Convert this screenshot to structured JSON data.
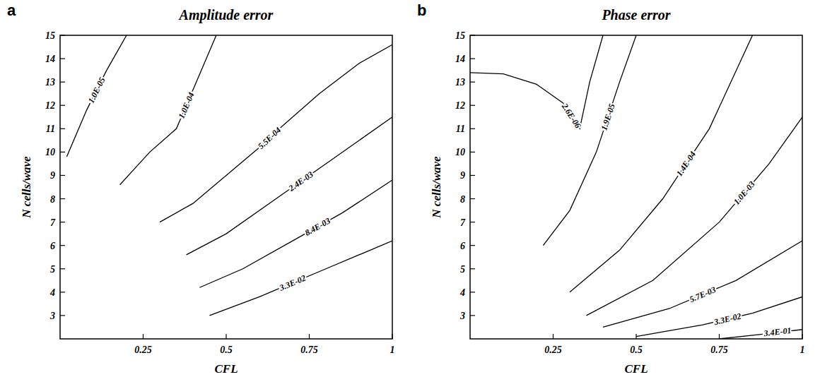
{
  "chart_data": [
    {
      "type": "contour",
      "panel": "a",
      "title": "Amplitude error",
      "x_label": "CFL",
      "y_label": "N cells/wave",
      "color": "#000000",
      "grid": false,
      "xlim": [
        0,
        1
      ],
      "ylim": [
        2,
        15
      ],
      "xticks": [
        0.25,
        0.5,
        0.75,
        1
      ],
      "yticks": [
        3,
        4,
        5,
        6,
        7,
        8,
        9,
        10,
        11,
        12,
        13,
        14,
        15
      ],
      "series": [
        {
          "name": "1.0E-05",
          "x": [
            0.02,
            0.08,
            0.14,
            0.2
          ],
          "values": [
            9.8,
            11.8,
            13.5,
            15
          ]
        },
        {
          "name": "1.0E-04",
          "x": [
            0.18,
            0.27,
            0.35,
            0.41,
            0.47
          ],
          "values": [
            8.6,
            10,
            11,
            13,
            15
          ]
        },
        {
          "name": "5.5E-04",
          "x": [
            0.3,
            0.4,
            0.5,
            0.6,
            0.66,
            0.78,
            0.9,
            1.0
          ],
          "values": [
            7.0,
            7.8,
            9.0,
            10.2,
            11,
            12.5,
            13.8,
            14.6
          ]
        },
        {
          "name": "2.4E-03",
          "x": [
            0.38,
            0.5,
            0.65,
            0.8,
            1.0
          ],
          "values": [
            5.6,
            6.5,
            8,
            9.5,
            11.5
          ]
        },
        {
          "name": "8.4E-03",
          "x": [
            0.42,
            0.55,
            0.7,
            0.85,
            1.0
          ],
          "values": [
            4.2,
            5.0,
            6.2,
            7.4,
            8.8
          ]
        },
        {
          "name": "3.3E-02",
          "x": [
            0.45,
            0.6,
            0.8,
            1.0
          ],
          "values": [
            3.0,
            3.8,
            5.0,
            6.2
          ]
        }
      ]
    },
    {
      "type": "contour",
      "panel": "b",
      "title": "Phase error",
      "x_label": "CFL",
      "y_label": "N cells/wave",
      "color": "#000000",
      "grid": false,
      "xlim": [
        0,
        1
      ],
      "ylim": [
        2,
        15
      ],
      "xticks": [
        0.25,
        0.5,
        0.75,
        1
      ],
      "yticks": [
        3,
        4,
        5,
        6,
        7,
        8,
        9,
        10,
        11,
        12,
        13,
        14,
        15
      ],
      "series": [
        {
          "name": "2.6E-06",
          "x": [
            0,
            0.1,
            0.2,
            0.28,
            0.33,
            0.36,
            0.4
          ],
          "values": [
            13.4,
            13.35,
            12.9,
            12.1,
            11.0,
            13.0,
            15
          ]
        },
        {
          "name": "1.9E-05",
          "x": [
            0.22,
            0.3,
            0.38,
            0.45,
            0.5
          ],
          "values": [
            6,
            7.5,
            10,
            13,
            15
          ]
        },
        {
          "name": "1.4E-04",
          "x": [
            0.3,
            0.45,
            0.58,
            0.72,
            0.85
          ],
          "values": [
            4,
            5.8,
            8,
            11,
            15
          ]
        },
        {
          "name": "1.0E-03",
          "x": [
            0.35,
            0.55,
            0.75,
            0.9,
            1.0
          ],
          "values": [
            3,
            4.5,
            7,
            9.5,
            11.5
          ]
        },
        {
          "name": "5.7E-03",
          "x": [
            0.4,
            0.6,
            0.8,
            1.0
          ],
          "values": [
            2.5,
            3.3,
            4.5,
            6.2
          ]
        },
        {
          "name": "3.3E-02",
          "x": [
            0.5,
            0.7,
            0.85,
            1.0
          ],
          "values": [
            2.1,
            2.6,
            3.1,
            3.8
          ]
        },
        {
          "name": "3.4E-01",
          "x": [
            0.75,
            0.88,
            1.0
          ],
          "values": [
            2.0,
            2.2,
            2.4
          ]
        }
      ]
    }
  ]
}
